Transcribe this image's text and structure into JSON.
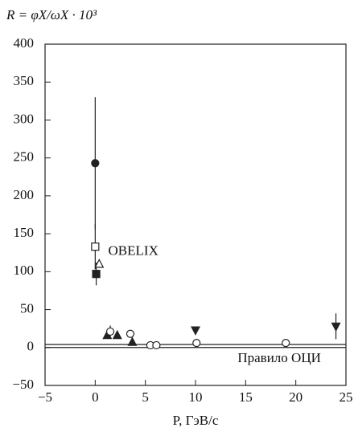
{
  "chart_data": {
    "type": "scatter",
    "ylabel": "R = φX/ωX · 10³",
    "xlabel": "P, ГэВ/с",
    "xlim": [
      -5,
      25
    ],
    "xticks": [
      {
        "value": -5,
        "label": "−5"
      },
      0,
      5,
      10,
      15,
      20,
      25
    ],
    "ylim": [
      -50,
      400
    ],
    "yticks": [
      {
        "value": -50,
        "label": "−50"
      },
      0,
      50,
      100,
      150,
      200,
      250,
      300,
      350,
      400
    ],
    "color": "#222222",
    "series": [
      {
        "marker": "circle",
        "filled": true,
        "x": [
          0
        ],
        "values": [
          243
        ],
        "errors": [
          87
        ]
      },
      {
        "marker": "square",
        "filled": false,
        "x": [
          0
        ],
        "values": [
          133
        ],
        "errors": [
          30
        ]
      },
      {
        "marker": "square",
        "filled": true,
        "x": [
          0.1
        ],
        "values": [
          97
        ],
        "errors": [
          15
        ]
      },
      {
        "marker": "triangle-up",
        "filled": false,
        "x": [
          0.4
        ],
        "values": [
          110
        ],
        "errors": [
          null
        ]
      },
      {
        "marker": "triangle-up",
        "filled": true,
        "x": [
          1.2,
          2.2,
          3.7
        ],
        "values": [
          16,
          16,
          7
        ],
        "errors": [
          null,
          null,
          null
        ]
      },
      {
        "marker": "circle",
        "filled": false,
        "x": [
          1.5,
          3.5,
          5.5,
          6.1,
          10.1,
          19
        ],
        "values": [
          21,
          18,
          3,
          3,
          6,
          6
        ],
        "errors": [
          8,
          null,
          null,
          null,
          null,
          null
        ]
      },
      {
        "marker": "triangle-down",
        "filled": true,
        "x": [
          10,
          24
        ],
        "values": [
          23,
          28
        ],
        "errors": [
          null,
          17
        ]
      }
    ],
    "reference_lines": [
      0,
      4
    ],
    "annotations": [
      {
        "text": "OBELIX",
        "x": 1.3,
        "y": 126
      },
      {
        "text": "Правило ОЦИ",
        "x": 14.2,
        "y": -15
      }
    ]
  }
}
